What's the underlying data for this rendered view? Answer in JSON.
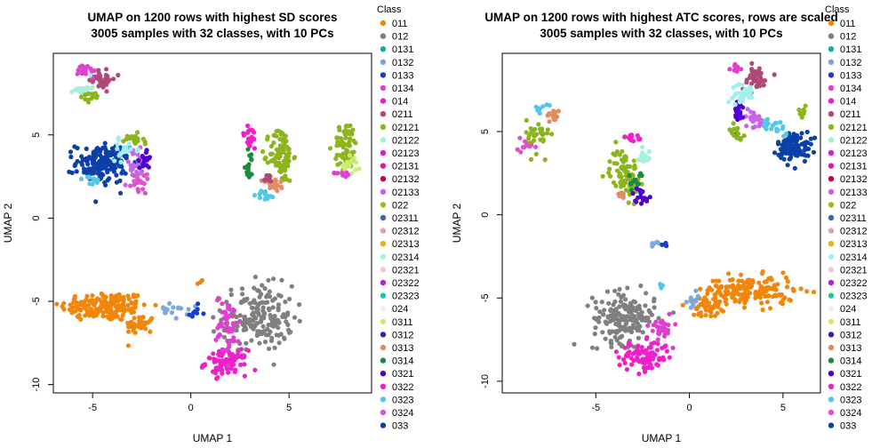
{
  "chart_data": [
    {
      "type": "scatter",
      "title": "UMAP on 1200 rows with highest SD scores",
      "subtitle": "3005 samples with 32 classes, with 10 PCs",
      "xlabel": "UMAP 1",
      "ylabel": "UMAP 2",
      "xlim": [
        -7.0,
        9.2
      ],
      "ylim": [
        -10.5,
        9.9
      ],
      "xticks": [
        -5,
        0,
        5
      ],
      "yticks": [
        -10,
        -5,
        0,
        5
      ],
      "grid": false,
      "legend": "right",
      "clusters": [
        {
          "class": "011",
          "cx": -4.4,
          "cy": -5.3,
          "sx": 1.5,
          "sy": 0.6,
          "n": 170
        },
        {
          "class": "011",
          "cx": -2.6,
          "cy": -6.4,
          "sx": 0.5,
          "sy": 0.4,
          "n": 40
        },
        {
          "class": "012",
          "cx": 3.4,
          "cy": -6.0,
          "sx": 1.2,
          "sy": 1.3,
          "n": 190
        },
        {
          "class": "0322",
          "cx": 1.8,
          "cy": -8.7,
          "sx": 0.7,
          "sy": 0.5,
          "n": 90
        },
        {
          "class": "0134",
          "cx": 1.9,
          "cy": -6.4,
          "sx": 0.4,
          "sy": 1.2,
          "n": 50
        },
        {
          "class": "0132",
          "cx": -0.9,
          "cy": -5.6,
          "sx": 0.5,
          "sy": 0.3,
          "n": 16
        },
        {
          "class": "0133",
          "cx": 0.2,
          "cy": -5.6,
          "sx": 0.3,
          "sy": 0.3,
          "n": 8
        },
        {
          "class": "011",
          "cx": 0.5,
          "cy": -3.8,
          "sx": 0.1,
          "sy": 0.1,
          "n": 3
        },
        {
          "class": "033",
          "cx": -4.5,
          "cy": 3.3,
          "sx": 0.9,
          "sy": 0.8,
          "n": 150
        },
        {
          "class": "02133",
          "cx": -2.8,
          "cy": 3.1,
          "sx": 0.4,
          "sy": 0.7,
          "n": 30
        },
        {
          "class": "0321",
          "cx": -2.3,
          "cy": 3.6,
          "sx": 0.2,
          "sy": 0.4,
          "n": 20
        },
        {
          "class": "02314",
          "cx": -3.3,
          "cy": 4.1,
          "sx": 0.5,
          "sy": 0.4,
          "n": 20
        },
        {
          "class": "02121",
          "cx": -3.0,
          "cy": 4.6,
          "sx": 0.4,
          "sy": 0.3,
          "n": 18
        },
        {
          "class": "0324",
          "cx": -2.6,
          "cy": 2.1,
          "sx": 0.3,
          "sy": 0.5,
          "n": 15
        },
        {
          "class": "0323",
          "cx": -5.0,
          "cy": 2.2,
          "sx": 0.3,
          "sy": 0.2,
          "n": 10
        },
        {
          "class": "0211",
          "cx": -4.7,
          "cy": 8.4,
          "sx": 0.6,
          "sy": 0.4,
          "n": 40
        },
        {
          "class": "0134",
          "cx": -5.3,
          "cy": 8.9,
          "sx": 0.3,
          "sy": 0.3,
          "n": 16
        },
        {
          "class": "02122",
          "cx": -5.5,
          "cy": 7.8,
          "sx": 0.3,
          "sy": 0.3,
          "n": 20
        },
        {
          "class": "02121",
          "cx": -5.0,
          "cy": 7.3,
          "sx": 0.4,
          "sy": 0.2,
          "n": 14
        },
        {
          "class": "02121",
          "cx": 4.6,
          "cy": 3.8,
          "sx": 0.4,
          "sy": 1.1,
          "n": 90
        },
        {
          "class": "0313",
          "cx": 4.2,
          "cy": 2.0,
          "sx": 0.4,
          "sy": 0.3,
          "n": 20
        },
        {
          "class": "0322",
          "cx": 3.0,
          "cy": 4.8,
          "sx": 0.3,
          "sy": 0.5,
          "n": 20
        },
        {
          "class": "0314",
          "cx": 3.0,
          "cy": 3.2,
          "sx": 0.2,
          "sy": 0.6,
          "n": 16
        },
        {
          "class": "0323",
          "cx": 3.8,
          "cy": 1.4,
          "sx": 0.3,
          "sy": 0.2,
          "n": 14
        },
        {
          "class": "0211",
          "cx": 3.9,
          "cy": 2.4,
          "sx": 0.2,
          "sy": 0.2,
          "n": 10
        },
        {
          "class": "02121",
          "cx": 7.9,
          "cy": 4.3,
          "sx": 0.4,
          "sy": 1.0,
          "n": 60
        },
        {
          "class": "0311",
          "cx": 8.2,
          "cy": 3.3,
          "sx": 0.3,
          "sy": 0.4,
          "n": 15
        },
        {
          "class": "0134",
          "cx": 7.8,
          "cy": 2.7,
          "sx": 0.3,
          "sy": 0.2,
          "n": 8
        }
      ]
    },
    {
      "type": "scatter",
      "title": "UMAP on 1200 rows with highest ATC scores, rows are scaled",
      "subtitle": "3005 samples with 32 classes, with 10 PCs",
      "xlabel": "UMAP 1",
      "ylabel": "UMAP 2",
      "xlim": [
        -10.0,
        7.0
      ],
      "ylim": [
        -10.7,
        9.7
      ],
      "xticks": [
        -5,
        0,
        5
      ],
      "yticks": [
        -10,
        -5,
        0,
        5
      ],
      "grid": false,
      "legend": "right",
      "clusters": [
        {
          "class": "012",
          "cx": -3.5,
          "cy": -6.2,
          "sx": 1.1,
          "sy": 1.0,
          "n": 180
        },
        {
          "class": "0322",
          "cx": -2.4,
          "cy": -8.5,
          "sx": 0.9,
          "sy": 0.6,
          "n": 100
        },
        {
          "class": "0134",
          "cx": -1.5,
          "cy": -6.7,
          "sx": 0.4,
          "sy": 0.6,
          "n": 30
        },
        {
          "class": "011",
          "cx": 3.2,
          "cy": -4.6,
          "sx": 1.6,
          "sy": 0.6,
          "n": 170
        },
        {
          "class": "011",
          "cx": 0.9,
          "cy": -5.5,
          "sx": 0.5,
          "sy": 0.4,
          "n": 40
        },
        {
          "class": "0132",
          "cx": 0.2,
          "cy": -5.1,
          "sx": 0.3,
          "sy": 0.3,
          "n": 12
        },
        {
          "class": "0323",
          "cx": -1.5,
          "cy": -4.3,
          "sx": 0.1,
          "sy": 0.1,
          "n": 4
        },
        {
          "class": "02121",
          "cx": -3.5,
          "cy": 2.5,
          "sx": 0.5,
          "sy": 1.0,
          "n": 80
        },
        {
          "class": "0314",
          "cx": -2.8,
          "cy": 2.0,
          "sx": 0.3,
          "sy": 0.4,
          "n": 15
        },
        {
          "class": "0321",
          "cx": -2.6,
          "cy": 1.2,
          "sx": 0.3,
          "sy": 0.3,
          "n": 15
        },
        {
          "class": "02122",
          "cx": -2.5,
          "cy": 3.5,
          "sx": 0.3,
          "sy": 0.5,
          "n": 15
        },
        {
          "class": "0322",
          "cx": -3.0,
          "cy": 4.6,
          "sx": 0.3,
          "sy": 0.2,
          "n": 12
        },
        {
          "class": "0313",
          "cx": -3.6,
          "cy": 1.2,
          "sx": 0.2,
          "sy": 0.2,
          "n": 10
        },
        {
          "class": "0132",
          "cx": -1.8,
          "cy": -1.8,
          "sx": 0.2,
          "sy": 0.2,
          "n": 6
        },
        {
          "class": "0133",
          "cx": -1.4,
          "cy": -1.9,
          "sx": 0.2,
          "sy": 0.2,
          "n": 4
        },
        {
          "class": "02121",
          "cx": -8.1,
          "cy": 4.7,
          "sx": 0.4,
          "sy": 0.7,
          "n": 35
        },
        {
          "class": "0313",
          "cx": -7.3,
          "cy": 6.0,
          "sx": 0.3,
          "sy": 0.3,
          "n": 16
        },
        {
          "class": "0324",
          "cx": -8.8,
          "cy": 4.0,
          "sx": 0.3,
          "sy": 0.3,
          "n": 10
        },
        {
          "class": "0323",
          "cx": -7.9,
          "cy": 6.4,
          "sx": 0.2,
          "sy": 0.2,
          "n": 8
        },
        {
          "class": "033",
          "cx": 5.6,
          "cy": 4.1,
          "sx": 0.6,
          "sy": 0.6,
          "n": 100
        },
        {
          "class": "02133",
          "cx": 3.5,
          "cy": 5.8,
          "sx": 0.4,
          "sy": 0.4,
          "n": 25
        },
        {
          "class": "0321",
          "cx": 2.6,
          "cy": 6.0,
          "sx": 0.3,
          "sy": 0.6,
          "n": 20
        },
        {
          "class": "0211",
          "cx": 3.5,
          "cy": 8.2,
          "sx": 0.5,
          "sy": 0.5,
          "n": 40
        },
        {
          "class": "02314",
          "cx": 2.9,
          "cy": 7.3,
          "sx": 0.4,
          "sy": 0.4,
          "n": 30
        },
        {
          "class": "02121",
          "cx": 2.5,
          "cy": 5.0,
          "sx": 0.3,
          "sy": 0.3,
          "n": 15
        },
        {
          "class": "0323",
          "cx": 4.6,
          "cy": 5.3,
          "sx": 0.5,
          "sy": 0.3,
          "n": 20
        },
        {
          "class": "0134",
          "cx": 2.5,
          "cy": 8.8,
          "sx": 0.2,
          "sy": 0.2,
          "n": 10
        },
        {
          "class": "02121",
          "cx": 6.1,
          "cy": 6.2,
          "sx": 0.2,
          "sy": 0.3,
          "n": 8
        }
      ]
    }
  ],
  "legend": {
    "title": "Class",
    "items": [
      {
        "label": "011",
        "color": "#f0870c"
      },
      {
        "label": "012",
        "color": "#808080"
      },
      {
        "label": "0131",
        "color": "#1aa8a0"
      },
      {
        "label": "0132",
        "color": "#7aa8e0"
      },
      {
        "label": "0133",
        "color": "#1c3cc8"
      },
      {
        "label": "0134",
        "color": "#e040d0"
      },
      {
        "label": "014",
        "color": "#e820d0"
      },
      {
        "label": "0211",
        "color": "#b04878"
      },
      {
        "label": "02121",
        "color": "#8cb41c"
      },
      {
        "label": "02122",
        "color": "#a8f0d8"
      },
      {
        "label": "02123",
        "color": "#d420d0"
      },
      {
        "label": "02131",
        "color": "#e018a8"
      },
      {
        "label": "02132",
        "color": "#c40050"
      },
      {
        "label": "02133",
        "color": "#c864e8"
      },
      {
        "label": "022",
        "color": "#a8b41c"
      },
      {
        "label": "02311",
        "color": "#3c64a8"
      },
      {
        "label": "02312",
        "color": "#e0a0b4"
      },
      {
        "label": "02313",
        "color": "#e0b41c"
      },
      {
        "label": "02314",
        "color": "#a0f0f0"
      },
      {
        "label": "02321",
        "color": "#f4c4d8"
      },
      {
        "label": "02322",
        "color": "#b41ce8"
      },
      {
        "label": "02323",
        "color": "#1cc8a0"
      },
      {
        "label": "024",
        "color": "#f0f0f0"
      },
      {
        "label": "0311",
        "color": "#c8f070"
      },
      {
        "label": "0312",
        "color": "#3c1ca8"
      },
      {
        "label": "0313",
        "color": "#e08c64"
      },
      {
        "label": "0314",
        "color": "#1c8c3c"
      },
      {
        "label": "0321",
        "color": "#5000d0"
      },
      {
        "label": "0322",
        "color": "#f020c8"
      },
      {
        "label": "0323",
        "color": "#50c8e8"
      },
      {
        "label": "0324",
        "color": "#e050c8"
      },
      {
        "label": "033",
        "color": "#0c40a8"
      }
    ]
  }
}
